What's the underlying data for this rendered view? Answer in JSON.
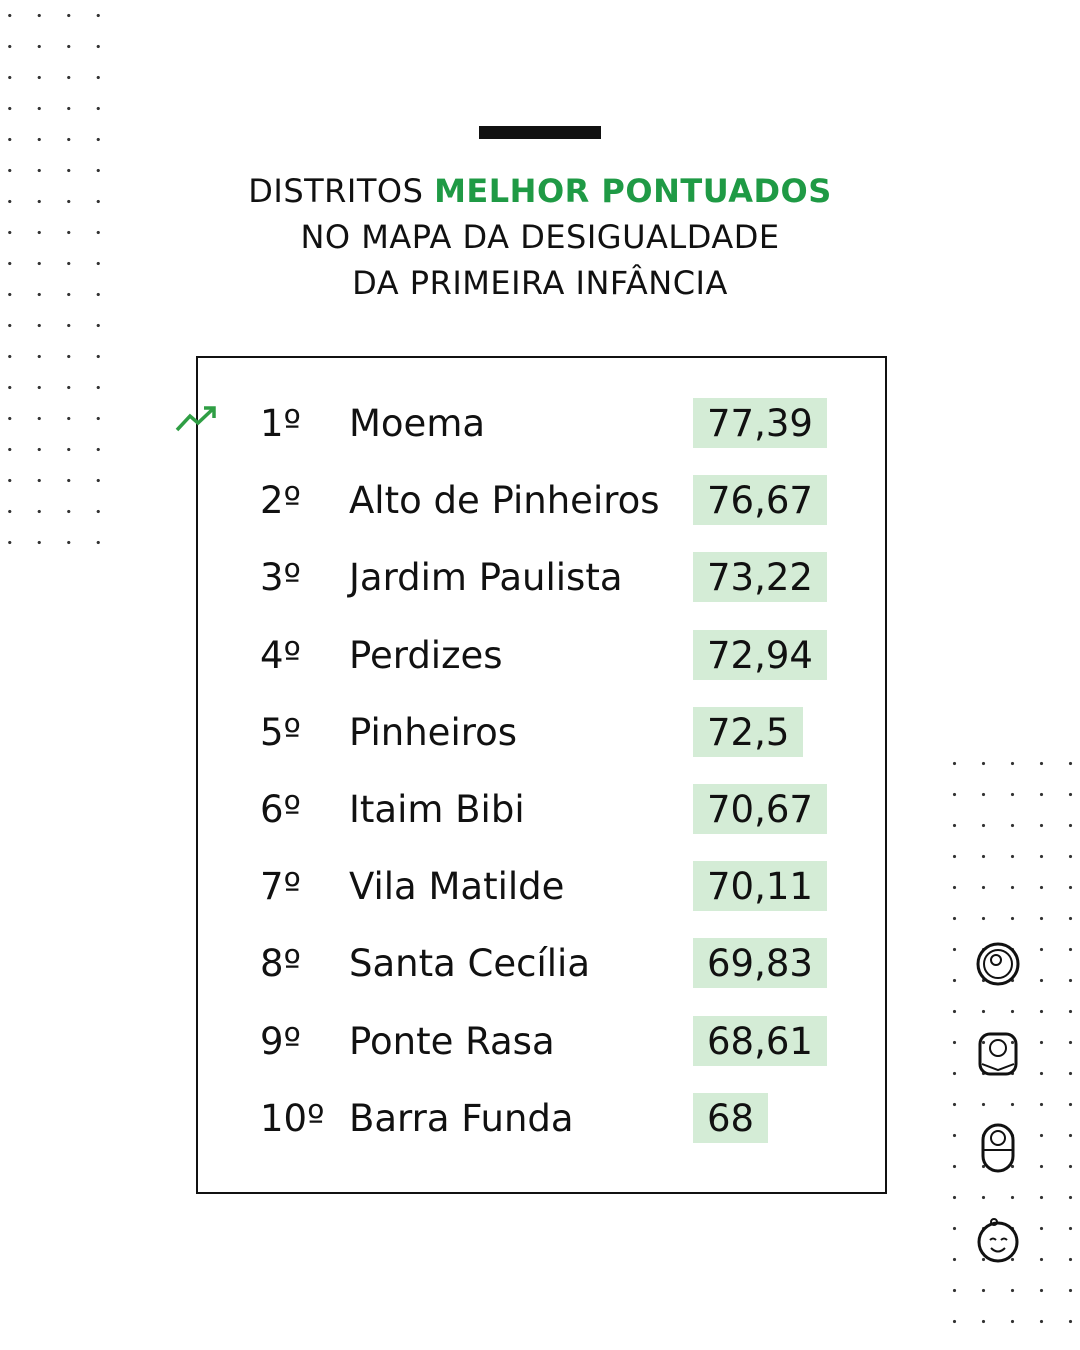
{
  "header": {
    "title_start": "DISTRITOS",
    "title_highlight": "MELHOR PONTUADOS",
    "title_rest": "NO MAPA DA DESIGUALDADE DA PRIMEIRA INFÂNCIA"
  },
  "table": {
    "rows": [
      [
        "1º",
        "Moema",
        "77,39"
      ],
      [
        "2º",
        "Alto de Pinheiros",
        "76,67"
      ],
      [
        "3º",
        "Jardim Paulista",
        "73,22"
      ],
      [
        "4º",
        "Perdizes",
        "72,94"
      ],
      [
        "5º",
        "Pinheiros",
        "72,5"
      ],
      [
        "6º",
        "Itaim Bibi",
        "70,67"
      ],
      [
        "7º",
        "Vila Matilde",
        "70,11"
      ],
      [
        "8º",
        "Santa Cecília",
        "69,83"
      ],
      [
        "9º",
        "Ponte Rasa",
        "68,61"
      ],
      [
        "10º",
        "Barra Funda",
        "68"
      ]
    ]
  }
}
